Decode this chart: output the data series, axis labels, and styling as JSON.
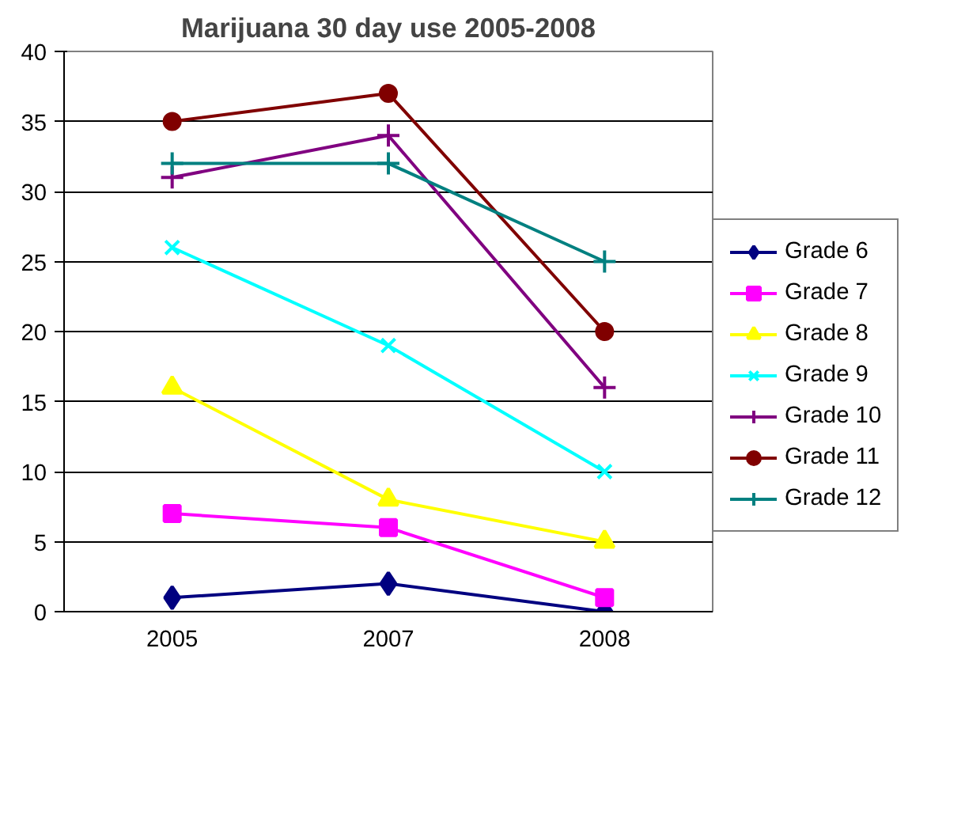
{
  "chart_data": {
    "type": "line",
    "title": "Marijuana 30 day use 2005-2008",
    "categories": [
      "2005",
      "2007",
      "2008"
    ],
    "series": [
      {
        "name": "Grade 6",
        "color": "#000080",
        "marker": "diamond",
        "values": [
          1,
          2,
          0
        ]
      },
      {
        "name": "Grade 7",
        "color": "#ff00ff",
        "marker": "square",
        "values": [
          7,
          6,
          1
        ]
      },
      {
        "name": "Grade 8",
        "color": "#ffff00",
        "marker": "triangle",
        "values": [
          16,
          8,
          5
        ]
      },
      {
        "name": "Grade 9",
        "color": "#00ffff",
        "marker": "x",
        "values": [
          26,
          19,
          10
        ]
      },
      {
        "name": "Grade 10",
        "color": "#800080",
        "marker": "cross",
        "values": [
          31,
          34,
          16
        ]
      },
      {
        "name": "Grade 11",
        "color": "#800000",
        "marker": "circle",
        "values": [
          35,
          37,
          20
        ]
      },
      {
        "name": "Grade 12",
        "color": "#008080",
        "marker": "cross",
        "values": [
          32,
          32,
          25
        ]
      }
    ],
    "ylim": [
      0,
      40
    ],
    "yticks": [
      0,
      5,
      10,
      15,
      20,
      25,
      30,
      35,
      40
    ],
    "grid": "y",
    "legend": "right"
  }
}
